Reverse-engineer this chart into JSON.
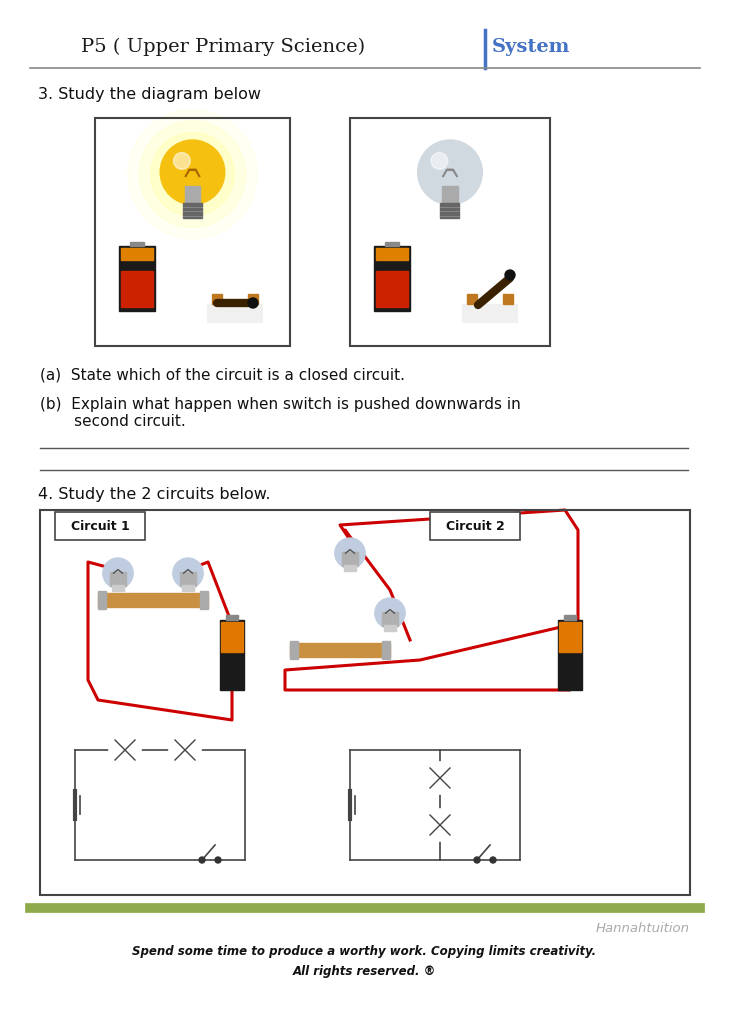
{
  "title_left": "P5 ( Upper Primary Science)",
  "title_right": "System",
  "header_line_color": "#888888",
  "footer_line_color": "#8faa4b",
  "footer_brand": "Hannahtuition",
  "footer_text1": "Spend some time to produce a worthy work. Copying limits creativity.",
  "footer_text2": "All rights reserved. ®",
  "q3_label": "3. Study the diagram below",
  "q3a": "(a)  State which of the circuit is a closed circuit.",
  "q3b_line1": "(b)  Explain what happen when switch is pushed downwards in",
  "q3b_line2": "       second circuit.",
  "q4_label": "4. Study the 2 circuits below.",
  "circuit1_label": "Circuit 1",
  "circuit2_label": "Circuit 2",
  "bg_color": "#ffffff"
}
